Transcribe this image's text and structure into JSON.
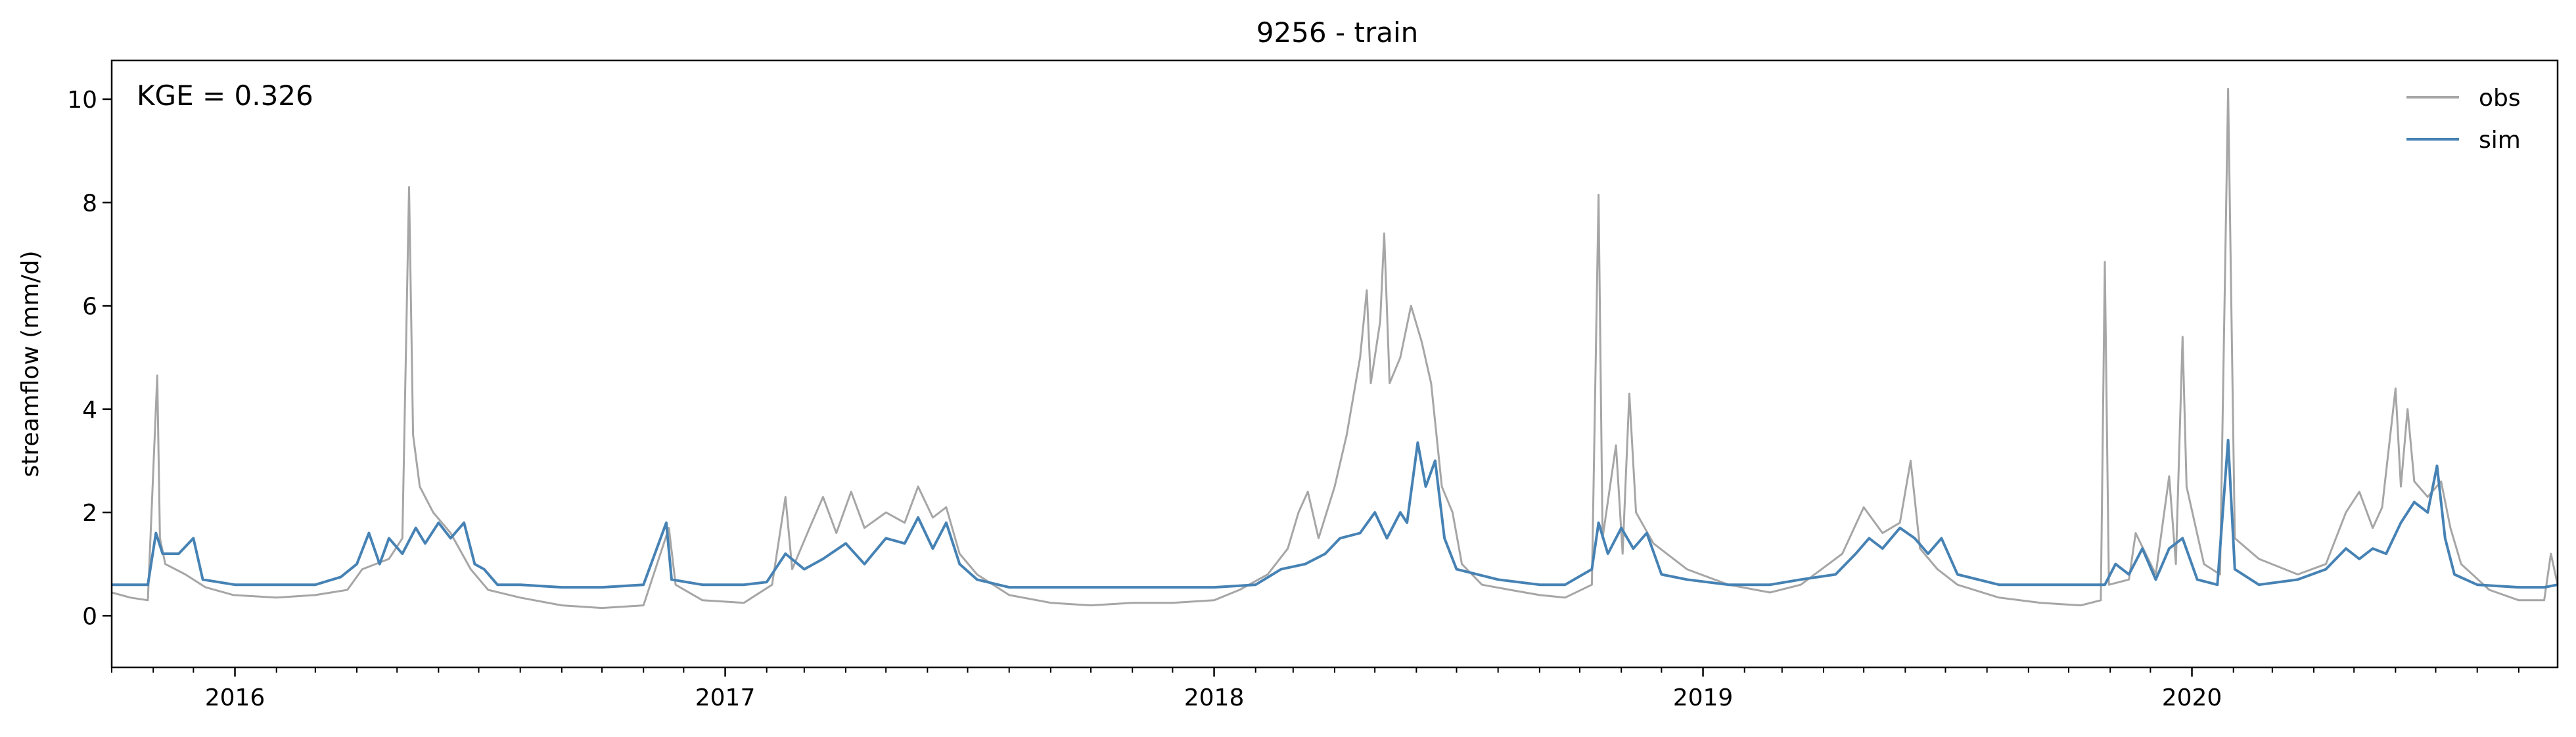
{
  "chart_data": {
    "type": "line",
    "title": "9256 - train",
    "ylabel": "streamflow (mm/d)",
    "xlabel": "",
    "annotation": "KGE = 0.326",
    "x_range": [
      "2015-10-01",
      "2020-09-30"
    ],
    "ylim": [
      -1.0,
      10.75
    ],
    "yticks": [
      0,
      2,
      4,
      6,
      8,
      10
    ],
    "xticks_major": [
      {
        "date": "2016-01-01",
        "label": "2016"
      },
      {
        "date": "2017-01-01",
        "label": "2017"
      },
      {
        "date": "2018-01-01",
        "label": "2018"
      },
      {
        "date": "2019-01-01",
        "label": "2019"
      },
      {
        "date": "2020-01-01",
        "label": "2020"
      }
    ],
    "grid": false,
    "legend_position": "top-right",
    "series": [
      {
        "name": "obs",
        "color": "#a6a6a6",
        "points": [
          [
            "2015-10-01",
            0.45
          ],
          [
            "2015-10-15",
            0.35
          ],
          [
            "2015-10-28",
            0.3
          ],
          [
            "2015-11-04",
            4.65
          ],
          [
            "2015-11-06",
            1.5
          ],
          [
            "2015-11-10",
            1.0
          ],
          [
            "2015-11-25",
            0.8
          ],
          [
            "2015-12-10",
            0.55
          ],
          [
            "2015-12-31",
            0.4
          ],
          [
            "2016-02-01",
            0.35
          ],
          [
            "2016-03-01",
            0.4
          ],
          [
            "2016-03-25",
            0.5
          ],
          [
            "2016-04-05",
            0.9
          ],
          [
            "2016-04-25",
            1.1
          ],
          [
            "2016-05-05",
            1.5
          ],
          [
            "2016-05-10",
            8.3
          ],
          [
            "2016-05-13",
            3.5
          ],
          [
            "2016-05-18",
            2.5
          ],
          [
            "2016-05-28",
            2.0
          ],
          [
            "2016-06-10",
            1.6
          ],
          [
            "2016-06-25",
            0.9
          ],
          [
            "2016-07-08",
            0.5
          ],
          [
            "2016-08-01",
            0.35
          ],
          [
            "2016-09-01",
            0.2
          ],
          [
            "2016-10-01",
            0.15
          ],
          [
            "2016-11-01",
            0.2
          ],
          [
            "2016-11-20",
            1.7
          ],
          [
            "2016-11-25",
            0.6
          ],
          [
            "2016-12-15",
            0.3
          ],
          [
            "2017-01-15",
            0.25
          ],
          [
            "2017-02-05",
            0.6
          ],
          [
            "2017-02-15",
            2.3
          ],
          [
            "2017-02-20",
            0.9
          ],
          [
            "2017-03-05",
            1.7
          ],
          [
            "2017-03-15",
            2.3
          ],
          [
            "2017-03-25",
            1.6
          ],
          [
            "2017-04-05",
            2.4
          ],
          [
            "2017-04-15",
            1.7
          ],
          [
            "2017-05-01",
            2.0
          ],
          [
            "2017-05-15",
            1.8
          ],
          [
            "2017-05-25",
            2.5
          ],
          [
            "2017-06-05",
            1.9
          ],
          [
            "2017-06-15",
            2.1
          ],
          [
            "2017-06-25",
            1.2
          ],
          [
            "2017-07-08",
            0.8
          ],
          [
            "2017-08-01",
            0.4
          ],
          [
            "2017-09-01",
            0.25
          ],
          [
            "2017-10-01",
            0.2
          ],
          [
            "2017-11-01",
            0.25
          ],
          [
            "2017-12-01",
            0.25
          ],
          [
            "2018-01-01",
            0.3
          ],
          [
            "2018-01-20",
            0.5
          ],
          [
            "2018-02-10",
            0.8
          ],
          [
            "2018-02-25",
            1.3
          ],
          [
            "2018-03-05",
            2.0
          ],
          [
            "2018-03-12",
            2.4
          ],
          [
            "2018-03-20",
            1.5
          ],
          [
            "2018-04-01",
            2.5
          ],
          [
            "2018-04-10",
            3.5
          ],
          [
            "2018-04-20",
            5.0
          ],
          [
            "2018-04-25",
            6.3
          ],
          [
            "2018-04-28",
            4.5
          ],
          [
            "2018-05-05",
            5.7
          ],
          [
            "2018-05-08",
            7.4
          ],
          [
            "2018-05-12",
            4.5
          ],
          [
            "2018-05-20",
            5.0
          ],
          [
            "2018-05-28",
            6.0
          ],
          [
            "2018-06-05",
            5.3
          ],
          [
            "2018-06-12",
            4.5
          ],
          [
            "2018-06-20",
            2.5
          ],
          [
            "2018-06-28",
            2.0
          ],
          [
            "2018-07-05",
            1.0
          ],
          [
            "2018-07-20",
            0.6
          ],
          [
            "2018-08-10",
            0.5
          ],
          [
            "2018-09-01",
            0.4
          ],
          [
            "2018-09-20",
            0.35
          ],
          [
            "2018-10-10",
            0.6
          ],
          [
            "2018-10-15",
            8.15
          ],
          [
            "2018-10-18",
            1.5
          ],
          [
            "2018-10-28",
            3.3
          ],
          [
            "2018-11-02",
            1.2
          ],
          [
            "2018-11-07",
            4.3
          ],
          [
            "2018-11-12",
            2.0
          ],
          [
            "2018-11-25",
            1.4
          ],
          [
            "2018-12-20",
            0.9
          ],
          [
            "2019-01-20",
            0.6
          ],
          [
            "2019-02-20",
            0.45
          ],
          [
            "2019-03-15",
            0.6
          ],
          [
            "2019-04-15",
            1.2
          ],
          [
            "2019-05-01",
            2.1
          ],
          [
            "2019-05-15",
            1.6
          ],
          [
            "2019-05-28",
            1.8
          ],
          [
            "2019-06-05",
            3.0
          ],
          [
            "2019-06-12",
            1.3
          ],
          [
            "2019-06-25",
            0.9
          ],
          [
            "2019-07-10",
            0.6
          ],
          [
            "2019-08-10",
            0.35
          ],
          [
            "2019-09-10",
            0.25
          ],
          [
            "2019-10-10",
            0.2
          ],
          [
            "2019-10-25",
            0.3
          ],
          [
            "2019-10-28",
            6.85
          ],
          [
            "2019-10-31",
            0.6
          ],
          [
            "2019-11-15",
            0.7
          ],
          [
            "2019-11-20",
            1.6
          ],
          [
            "2019-12-05",
            0.8
          ],
          [
            "2019-12-15",
            2.7
          ],
          [
            "2019-12-20",
            1.0
          ],
          [
            "2019-12-25",
            5.4
          ],
          [
            "2019-12-28",
            2.5
          ],
          [
            "2020-01-10",
            1.0
          ],
          [
            "2020-01-22",
            0.8
          ],
          [
            "2020-01-28",
            10.2
          ],
          [
            "2020-02-02",
            1.5
          ],
          [
            "2020-02-20",
            1.1
          ],
          [
            "2020-03-20",
            0.8
          ],
          [
            "2020-04-10",
            1.0
          ],
          [
            "2020-04-25",
            2.0
          ],
          [
            "2020-05-05",
            2.4
          ],
          [
            "2020-05-15",
            1.7
          ],
          [
            "2020-05-22",
            2.1
          ],
          [
            "2020-06-01",
            4.4
          ],
          [
            "2020-06-05",
            2.5
          ],
          [
            "2020-06-10",
            4.0
          ],
          [
            "2020-06-15",
            2.6
          ],
          [
            "2020-06-25",
            2.3
          ],
          [
            "2020-07-05",
            2.6
          ],
          [
            "2020-07-12",
            1.7
          ],
          [
            "2020-07-20",
            1.0
          ],
          [
            "2020-08-10",
            0.5
          ],
          [
            "2020-09-01",
            0.3
          ],
          [
            "2020-09-20",
            0.3
          ],
          [
            "2020-09-25",
            1.2
          ],
          [
            "2020-09-30",
            0.6
          ]
        ]
      },
      {
        "name": "sim",
        "color": "#4682b4",
        "points": [
          [
            "2015-10-01",
            0.6
          ],
          [
            "2015-10-15",
            0.6
          ],
          [
            "2015-10-28",
            0.6
          ],
          [
            "2015-11-03",
            1.6
          ],
          [
            "2015-11-08",
            1.2
          ],
          [
            "2015-11-20",
            1.2
          ],
          [
            "2015-12-01",
            1.5
          ],
          [
            "2015-12-08",
            0.7
          ],
          [
            "2016-01-01",
            0.6
          ],
          [
            "2016-02-01",
            0.6
          ],
          [
            "2016-03-01",
            0.6
          ],
          [
            "2016-03-20",
            0.75
          ],
          [
            "2016-04-01",
            1.0
          ],
          [
            "2016-04-10",
            1.6
          ],
          [
            "2016-04-18",
            1.0
          ],
          [
            "2016-04-25",
            1.5
          ],
          [
            "2016-05-05",
            1.2
          ],
          [
            "2016-05-15",
            1.7
          ],
          [
            "2016-05-22",
            1.4
          ],
          [
            "2016-06-01",
            1.8
          ],
          [
            "2016-06-10",
            1.5
          ],
          [
            "2016-06-20",
            1.8
          ],
          [
            "2016-06-28",
            1.0
          ],
          [
            "2016-07-05",
            0.9
          ],
          [
            "2016-07-15",
            0.6
          ],
          [
            "2016-08-01",
            0.6
          ],
          [
            "2016-09-01",
            0.55
          ],
          [
            "2016-10-01",
            0.55
          ],
          [
            "2016-11-01",
            0.6
          ],
          [
            "2016-11-18",
            1.8
          ],
          [
            "2016-11-22",
            0.7
          ],
          [
            "2016-12-15",
            0.6
          ],
          [
            "2017-01-15",
            0.6
          ],
          [
            "2017-02-01",
            0.65
          ],
          [
            "2017-02-15",
            1.2
          ],
          [
            "2017-03-01",
            0.9
          ],
          [
            "2017-03-15",
            1.1
          ],
          [
            "2017-04-01",
            1.4
          ],
          [
            "2017-04-15",
            1.0
          ],
          [
            "2017-05-01",
            1.5
          ],
          [
            "2017-05-15",
            1.4
          ],
          [
            "2017-05-25",
            1.9
          ],
          [
            "2017-06-05",
            1.3
          ],
          [
            "2017-06-15",
            1.8
          ],
          [
            "2017-06-25",
            1.0
          ],
          [
            "2017-07-08",
            0.7
          ],
          [
            "2017-08-01",
            0.55
          ],
          [
            "2017-09-01",
            0.55
          ],
          [
            "2017-10-01",
            0.55
          ],
          [
            "2017-11-01",
            0.55
          ],
          [
            "2017-12-01",
            0.55
          ],
          [
            "2018-01-01",
            0.55
          ],
          [
            "2018-02-01",
            0.6
          ],
          [
            "2018-02-20",
            0.9
          ],
          [
            "2018-03-10",
            1.0
          ],
          [
            "2018-03-25",
            1.2
          ],
          [
            "2018-04-05",
            1.5
          ],
          [
            "2018-04-20",
            1.6
          ],
          [
            "2018-05-01",
            2.0
          ],
          [
            "2018-05-10",
            1.5
          ],
          [
            "2018-05-20",
            2.0
          ],
          [
            "2018-05-25",
            1.8
          ],
          [
            "2018-06-02",
            3.35
          ],
          [
            "2018-06-08",
            2.5
          ],
          [
            "2018-06-15",
            3.0
          ],
          [
            "2018-06-22",
            1.5
          ],
          [
            "2018-07-01",
            0.9
          ],
          [
            "2018-08-01",
            0.7
          ],
          [
            "2018-09-01",
            0.6
          ],
          [
            "2018-09-20",
            0.6
          ],
          [
            "2018-10-10",
            0.9
          ],
          [
            "2018-10-15",
            1.8
          ],
          [
            "2018-10-22",
            1.2
          ],
          [
            "2018-11-01",
            1.7
          ],
          [
            "2018-11-10",
            1.3
          ],
          [
            "2018-11-20",
            1.6
          ],
          [
            "2018-12-01",
            0.8
          ],
          [
            "2018-12-20",
            0.7
          ],
          [
            "2019-01-20",
            0.6
          ],
          [
            "2019-02-20",
            0.6
          ],
          [
            "2019-03-15",
            0.7
          ],
          [
            "2019-04-10",
            0.8
          ],
          [
            "2019-04-25",
            1.2
          ],
          [
            "2019-05-05",
            1.5
          ],
          [
            "2019-05-15",
            1.3
          ],
          [
            "2019-05-28",
            1.7
          ],
          [
            "2019-06-08",
            1.5
          ],
          [
            "2019-06-18",
            1.2
          ],
          [
            "2019-06-28",
            1.5
          ],
          [
            "2019-07-10",
            0.8
          ],
          [
            "2019-08-10",
            0.6
          ],
          [
            "2019-09-10",
            0.6
          ],
          [
            "2019-10-10",
            0.6
          ],
          [
            "2019-10-28",
            0.6
          ],
          [
            "2019-11-05",
            1.0
          ],
          [
            "2019-11-15",
            0.8
          ],
          [
            "2019-11-25",
            1.3
          ],
          [
            "2019-12-05",
            0.7
          ],
          [
            "2019-12-15",
            1.3
          ],
          [
            "2019-12-25",
            1.5
          ],
          [
            "2020-01-05",
            0.7
          ],
          [
            "2020-01-20",
            0.6
          ],
          [
            "2020-01-28",
            3.4
          ],
          [
            "2020-02-02",
            0.9
          ],
          [
            "2020-02-20",
            0.6
          ],
          [
            "2020-03-20",
            0.7
          ],
          [
            "2020-04-10",
            0.9
          ],
          [
            "2020-04-25",
            1.3
          ],
          [
            "2020-05-05",
            1.1
          ],
          [
            "2020-05-15",
            1.3
          ],
          [
            "2020-05-25",
            1.2
          ],
          [
            "2020-06-05",
            1.8
          ],
          [
            "2020-06-15",
            2.2
          ],
          [
            "2020-06-25",
            2.0
          ],
          [
            "2020-07-02",
            2.9
          ],
          [
            "2020-07-08",
            1.5
          ],
          [
            "2020-07-15",
            0.8
          ],
          [
            "2020-08-01",
            0.6
          ],
          [
            "2020-09-01",
            0.55
          ],
          [
            "2020-09-20",
            0.55
          ],
          [
            "2020-09-30",
            0.6
          ]
        ]
      }
    ]
  }
}
